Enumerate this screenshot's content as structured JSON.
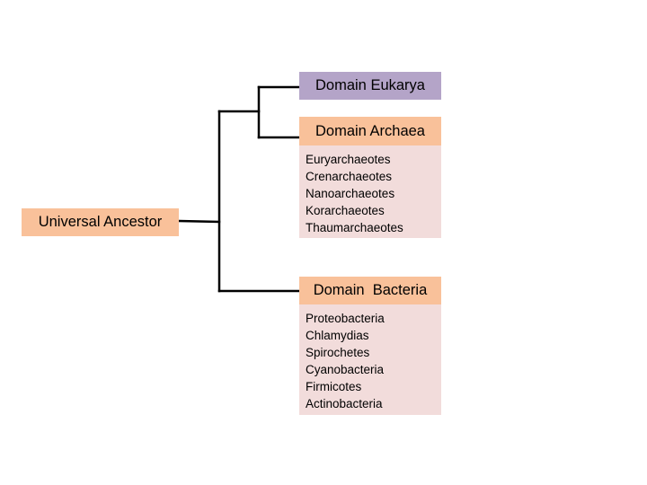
{
  "root": {
    "label": "Universal Ancestor"
  },
  "eukarya": {
    "label": "Domain Eukarya"
  },
  "archaea": {
    "label": "Domain Archaea",
    "groups": [
      "Euryarchaeotes",
      "Crenarchaeotes",
      "Nanoarchaeotes",
      "Korarchaeotes",
      "Thaumarchaeotes"
    ]
  },
  "bacteria": {
    "label": "Domain  Bacteria",
    "groups": [
      "Proteobacteria",
      "Chlamydias",
      "Spirochetes",
      "Cyanobacteria",
      "Firmicotes",
      "Actinobacteria"
    ]
  },
  "colors": {
    "domain_box": "#f9c19a",
    "eukarya_box": "#b4a4c8",
    "group_list": "#f2dcdb",
    "line": "#000000"
  }
}
